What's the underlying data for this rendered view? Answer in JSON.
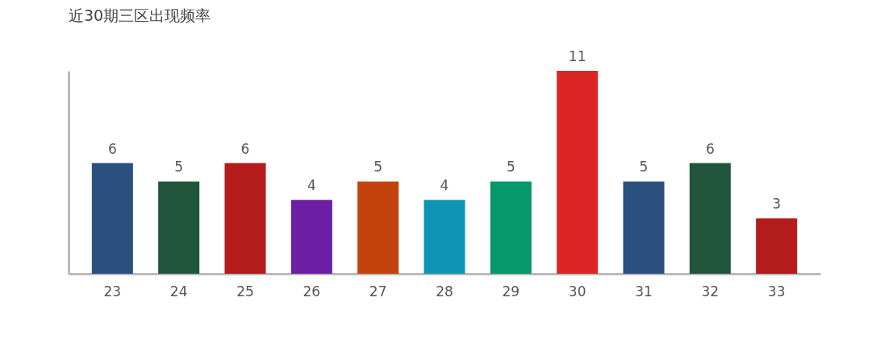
{
  "chart_data": {
    "type": "bar",
    "title": "近30期三区出现频率",
    "categories": [
      "23",
      "24",
      "25",
      "26",
      "27",
      "28",
      "29",
      "30",
      "31",
      "32",
      "33"
    ],
    "values": [
      6,
      5,
      6,
      4,
      5,
      4,
      5,
      11,
      5,
      6,
      3
    ],
    "colors": [
      "#2b5080",
      "#21553b",
      "#b41c1c",
      "#6c1fa5",
      "#c4420c",
      "#0e95b5",
      "#05986a",
      "#dc2626",
      "#2b5080",
      "#21553b",
      "#b41c1c"
    ],
    "data_labels": true,
    "grid": false,
    "legend": false,
    "tick_labels": "x"
  }
}
